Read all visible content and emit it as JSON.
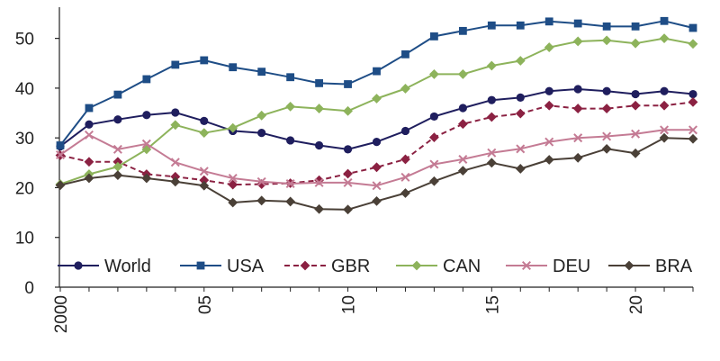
{
  "chart_data": {
    "type": "line",
    "title": "",
    "xlabel": "",
    "ylabel": "",
    "x": [
      2000,
      2001,
      2002,
      2003,
      2004,
      2005,
      2006,
      2007,
      2008,
      2009,
      2010,
      2011,
      2012,
      2013,
      2014,
      2015,
      2016,
      2017,
      2018,
      2019,
      2020,
      2021,
      2022
    ],
    "xticks": [
      {
        "x": 2000,
        "label": "2000"
      },
      {
        "x": 2005,
        "label": "05"
      },
      {
        "x": 2010,
        "label": "10"
      },
      {
        "x": 2015,
        "label": "15"
      },
      {
        "x": 2020,
        "label": "20"
      }
    ],
    "yticks": [
      0,
      10,
      20,
      30,
      40,
      50
    ],
    "ylim": [
      0,
      55
    ],
    "grid": false,
    "legend_position": "bottom",
    "series": [
      {
        "name": "World",
        "color": "#1f1e5e",
        "marker": "circle",
        "dash": "solid",
        "values": [
          28.3,
          32.7,
          33.7,
          34.6,
          35.1,
          33.4,
          31.4,
          31.0,
          29.5,
          28.5,
          27.7,
          29.2,
          31.4,
          34.3,
          36.0,
          37.6,
          38.1,
          39.4,
          39.8,
          39.4,
          38.8,
          39.4,
          38.8
        ]
      },
      {
        "name": "USA",
        "color": "#1e4d86",
        "marker": "square",
        "dash": "solid",
        "values": [
          28.5,
          36.0,
          38.7,
          41.8,
          44.7,
          45.6,
          44.2,
          43.3,
          42.2,
          41.0,
          40.8,
          43.4,
          46.8,
          50.4,
          51.5,
          52.6,
          52.6,
          53.4,
          53.0,
          52.4,
          52.4,
          53.5,
          52.1
        ]
      },
      {
        "name": "GBR",
        "color": "#8b2142",
        "marker": "diamond",
        "dash": "dashed",
        "values": [
          26.5,
          25.2,
          25.2,
          22.7,
          22.2,
          21.5,
          20.6,
          20.7,
          20.9,
          21.5,
          22.8,
          24.1,
          25.7,
          30.1,
          32.8,
          34.2,
          34.9,
          36.5,
          35.9,
          35.9,
          36.5,
          36.5,
          37.2
        ]
      },
      {
        "name": "CAN",
        "color": "#8db35b",
        "marker": "diamond",
        "dash": "solid",
        "values": [
          20.7,
          22.7,
          24.2,
          27.7,
          32.6,
          31.0,
          32.0,
          34.5,
          36.3,
          35.9,
          35.4,
          37.9,
          39.9,
          42.8,
          42.8,
          44.5,
          45.5,
          48.2,
          49.4,
          49.6,
          49.0,
          50.0,
          48.9
        ]
      },
      {
        "name": "DEU",
        "color": "#c47b94",
        "marker": "x",
        "dash": "solid",
        "values": [
          26.6,
          30.6,
          27.7,
          28.8,
          25.1,
          23.3,
          21.9,
          21.2,
          20.8,
          21.0,
          21.0,
          20.4,
          22.1,
          24.7,
          25.7,
          27.0,
          27.8,
          29.2,
          30.0,
          30.3,
          30.8,
          31.6,
          31.6
        ]
      },
      {
        "name": "BRA",
        "color": "#4a4037",
        "marker": "diamond",
        "dash": "solid",
        "values": [
          20.5,
          21.9,
          22.5,
          21.9,
          21.2,
          20.4,
          17.0,
          17.4,
          17.2,
          15.7,
          15.6,
          17.3,
          18.9,
          21.3,
          23.4,
          25.0,
          23.8,
          25.6,
          26.0,
          27.8,
          26.9,
          30.0,
          29.8
        ]
      }
    ]
  }
}
